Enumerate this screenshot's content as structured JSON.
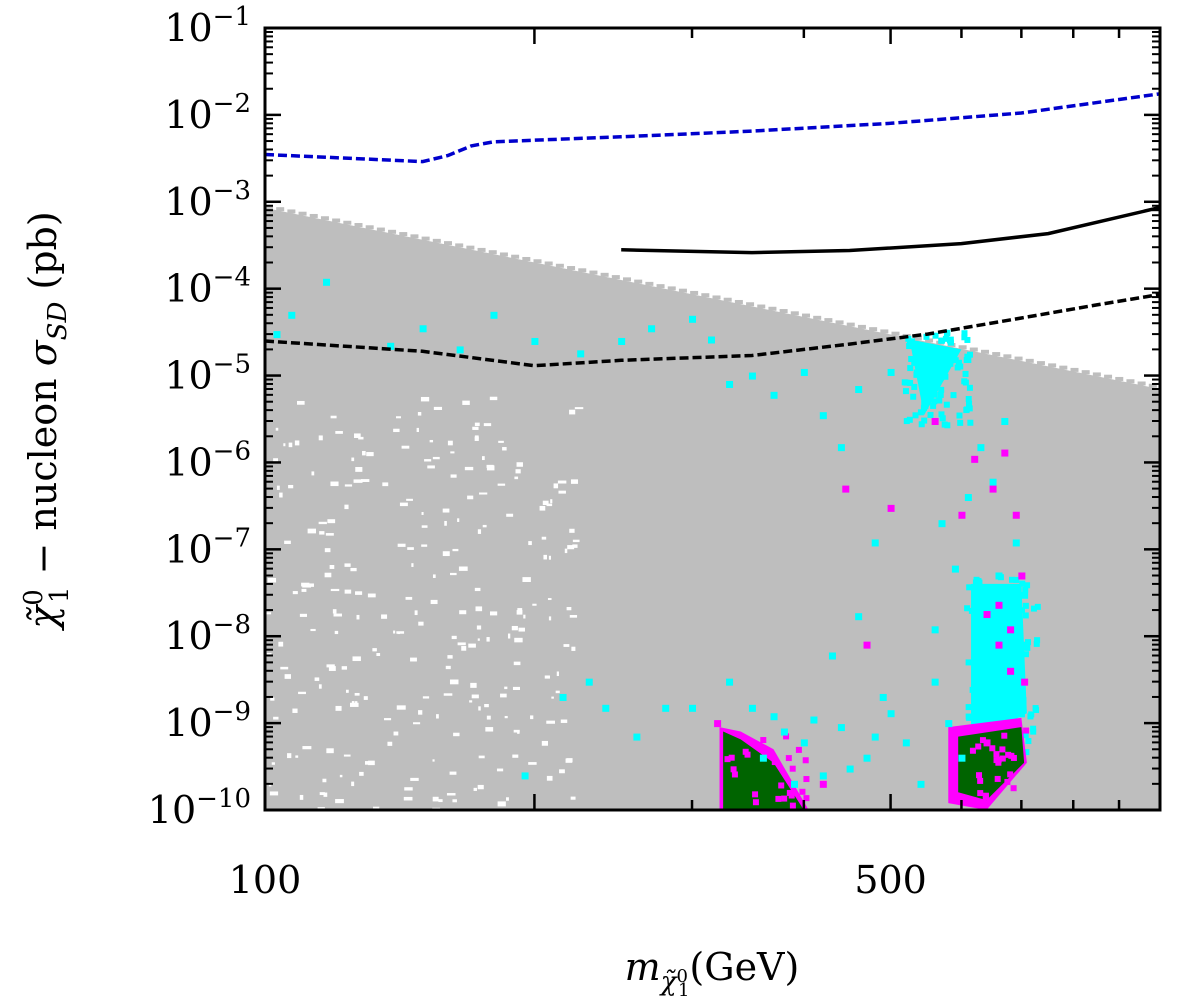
{
  "chart_data": {
    "type": "scatter",
    "title": "",
    "xscale": "log",
    "yscale": "log",
    "xlim": [
      100,
      1000
    ],
    "ylim": [
      1e-10,
      0.1
    ],
    "x_tick_labels": [
      {
        "value": 100,
        "label": "100"
      },
      {
        "value": 500,
        "label": "500"
      }
    ],
    "y_tick_labels": [
      {
        "exp": -1,
        "base": "10",
        "sup": "−1"
      },
      {
        "exp": -2,
        "base": "10",
        "sup": "−2"
      },
      {
        "exp": -3,
        "base": "10",
        "sup": "−3"
      },
      {
        "exp": -4,
        "base": "10",
        "sup": "−4"
      },
      {
        "exp": -5,
        "base": "10",
        "sup": "−5"
      },
      {
        "exp": -6,
        "base": "10",
        "sup": "−6"
      },
      {
        "exp": -7,
        "base": "10",
        "sup": "−7"
      },
      {
        "exp": -8,
        "base": "10",
        "sup": "−8"
      },
      {
        "exp": -9,
        "base": "10",
        "sup": "−9"
      },
      {
        "exp": -10,
        "base": "10",
        "sup": "−10"
      }
    ],
    "xlabel": {
      "main": "m",
      "sub": "χ̃",
      "subsup": "0",
      "subsub": "1",
      "unit": "(GeV)"
    },
    "ylabel": {
      "chi": "χ̃",
      "sup": "0",
      "sub": "1",
      "mid": " − nucleon ",
      "sigma": "σ",
      "sigma_sub": "SD",
      "unit": " (pb)"
    },
    "series": [
      {
        "name": "excluded-gray-region",
        "color": "#bebebe",
        "kind": "region",
        "upper_boundary": [
          [
            100,
            0.00085
          ],
          [
            1000,
            7e-06
          ]
        ],
        "lower_boundary": [
          [
            100,
            1e-10
          ],
          [
            1000,
            1e-10
          ]
        ]
      },
      {
        "name": "cyan-points",
        "color": "#00ffff",
        "kind": "points",
        "points": [
          [
            103,
            3e-05
          ],
          [
            107,
            5e-05
          ],
          [
            117,
            0.00012
          ],
          [
            138,
            2.2e-05
          ],
          [
            150,
            3.5e-05
          ],
          [
            165,
            2e-05
          ],
          [
            180,
            5e-05
          ],
          [
            200,
            2.5e-05
          ],
          [
            225,
            1.8e-05
          ],
          [
            250,
            2.5e-05
          ],
          [
            270,
            3.5e-05
          ],
          [
            300,
            4.5e-05
          ],
          [
            315,
            2.6e-05
          ],
          [
            330,
            8e-06
          ],
          [
            350,
            1e-05
          ],
          [
            370,
            6e-06
          ],
          [
            400,
            1.1e-05
          ],
          [
            420,
            3.5e-06
          ],
          [
            440,
            1.5e-06
          ],
          [
            460,
            7e-06
          ],
          [
            480,
            1.2e-07
          ],
          [
            500,
            1.1e-05
          ],
          [
            330,
            3e-09
          ],
          [
            350,
            1.5e-09
          ],
          [
            360,
            4e-10
          ],
          [
            370,
            1.2e-09
          ],
          [
            380,
            8e-10
          ],
          [
            390,
            2e-10
          ],
          [
            400,
            6e-10
          ],
          [
            410,
            1.1e-09
          ],
          [
            420,
            2.5e-10
          ],
          [
            430,
            6e-09
          ],
          [
            440,
            9e-10
          ],
          [
            450,
            3e-10
          ],
          [
            460,
            1.7e-08
          ],
          [
            470,
            4e-10
          ],
          [
            480,
            7e-10
          ],
          [
            490,
            2e-09
          ],
          [
            500,
            1.3e-09
          ],
          [
            520,
            6e-10
          ],
          [
            540,
            2e-10
          ],
          [
            560,
            3e-09
          ],
          [
            580,
            1e-09
          ],
          [
            600,
            4e-10
          ],
          [
            620,
            2e-08
          ],
          [
            640,
            8e-09
          ],
          [
            650,
            2.5e-09
          ],
          [
            660,
            5e-08
          ],
          [
            680,
            1.5e-09
          ],
          [
            560,
            1.2e-08
          ],
          [
            570,
            2e-07
          ],
          [
            590,
            6e-08
          ],
          [
            610,
            4e-07
          ],
          [
            630,
            1.5e-06
          ],
          [
            650,
            6e-07
          ],
          [
            670,
            3e-06
          ],
          [
            690,
            1.2e-07
          ],
          [
            700,
            8e-09
          ],
          [
            705,
            3e-08
          ],
          [
            300,
            1.5e-09
          ],
          [
            280,
            1.5e-09
          ],
          [
            260,
            7e-10
          ],
          [
            240,
            1.5e-09
          ],
          [
            230,
            3e-09
          ],
          [
            215,
            2e-09
          ],
          [
            195,
            2.5e-10
          ]
        ]
      },
      {
        "name": "cyan-dense-top-wedge",
        "color": "#00ffff",
        "kind": "region",
        "polygon": [
          [
            525,
            2.6e-05
          ],
          [
            600,
            2e-05
          ],
          [
            545,
            3.5e-06
          ]
        ]
      },
      {
        "name": "cyan-dense-column",
        "color": "#00ffff",
        "kind": "region",
        "polygon": [
          [
            615,
            4e-08
          ],
          [
            700,
            4e-08
          ],
          [
            710,
            1.3e-09
          ],
          [
            615,
            6e-10
          ]
        ]
      },
      {
        "name": "magenta-points",
        "color": "#ff00ff",
        "kind": "points",
        "points": [
          [
            320,
            1e-09
          ],
          [
            420,
            2e-10
          ],
          [
            445,
            5e-07
          ],
          [
            470,
            8e-09
          ],
          [
            500,
            3e-07
          ],
          [
            560,
            3e-06
          ],
          [
            600,
            2.5e-07
          ],
          [
            620,
            1.1e-06
          ],
          [
            640,
            1.8e-08
          ],
          [
            660,
            2.3e-08
          ],
          [
            680,
            1.2e-08
          ],
          [
            700,
            5e-08
          ],
          [
            650,
            5e-07
          ],
          [
            670,
            1.3e-06
          ],
          [
            690,
            2.5e-07
          ],
          [
            705,
            3e-09
          ],
          [
            640,
            6e-10
          ],
          [
            660,
            8e-09
          ],
          [
            680,
            4e-09
          ]
        ]
      },
      {
        "name": "magenta-region-left",
        "color": "#ff00ff",
        "kind": "region",
        "polygon": [
          [
            322,
            9e-10
          ],
          [
            340,
            8e-10
          ],
          [
            370,
            5e-10
          ],
          [
            405,
            1e-10
          ],
          [
            322,
            1e-10
          ]
        ]
      },
      {
        "name": "magenta-region-right",
        "color": "#ff00ff",
        "kind": "region",
        "polygon": [
          [
            580,
            9e-10
          ],
          [
            700,
            1.15e-09
          ],
          [
            710,
            3.5e-10
          ],
          [
            640,
            1e-10
          ],
          [
            580,
            1.2e-10
          ]
        ]
      },
      {
        "name": "green-region-left",
        "color": "#006400",
        "kind": "region",
        "polygon": [
          [
            325,
            8e-10
          ],
          [
            340,
            6.5e-10
          ],
          [
            370,
            3.5e-10
          ],
          [
            400,
            1e-10
          ],
          [
            325,
            1e-10
          ]
        ]
      },
      {
        "name": "green-region-right",
        "color": "#006400",
        "kind": "region",
        "polygon": [
          [
            595,
            7e-10
          ],
          [
            700,
            9e-10
          ],
          [
            705,
            3.5e-10
          ],
          [
            640,
            1.3e-10
          ],
          [
            595,
            1.6e-10
          ]
        ]
      },
      {
        "name": "blue-dashed-limit",
        "color": "#0000cc",
        "kind": "line",
        "dash": "dashed",
        "points": [
          [
            100,
            0.0035
          ],
          [
            150,
            0.0029
          ],
          [
            160,
            0.0034
          ],
          [
            170,
            0.0044
          ],
          [
            180,
            0.0049
          ],
          [
            250,
            0.0056
          ],
          [
            350,
            0.0065
          ],
          [
            500,
            0.008
          ],
          [
            700,
            0.0105
          ],
          [
            1000,
            0.0175
          ]
        ]
      },
      {
        "name": "black-solid-limit",
        "color": "#000000",
        "kind": "line",
        "dash": "solid",
        "points": [
          [
            250,
            0.00028
          ],
          [
            350,
            0.00026
          ],
          [
            450,
            0.000275
          ],
          [
            600,
            0.00033
          ],
          [
            750,
            0.00043
          ],
          [
            1000,
            0.00086
          ]
        ]
      },
      {
        "name": "black-dashed-limit",
        "color": "#000000",
        "kind": "line",
        "dash": "dashed",
        "points": [
          [
            100,
            2.5e-05
          ],
          [
            150,
            1.9e-05
          ],
          [
            200,
            1.3e-05
          ],
          [
            250,
            1.5e-05
          ],
          [
            350,
            1.7e-05
          ],
          [
            450,
            2.3e-05
          ],
          [
            550,
            3e-05
          ],
          [
            700,
            4.6e-05
          ],
          [
            850,
            6.5e-05
          ],
          [
            1000,
            8.6e-05
          ]
        ]
      }
    ]
  }
}
